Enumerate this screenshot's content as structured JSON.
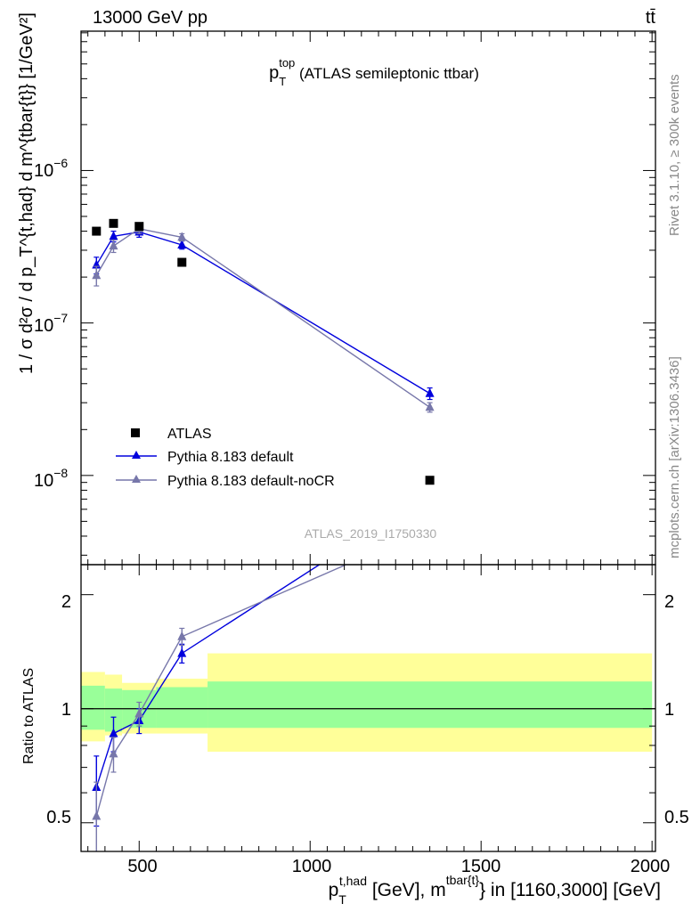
{
  "header": {
    "collision": "13000 GeV pp",
    "process": "tt̄"
  },
  "main_plot": {
    "title_main": "p",
    "title_sup": "top",
    "title_sub": "T",
    "title_desc": " (ATLAS semileptonic ttbar)",
    "ylabel": "1 / σ d²σ / d p_T^{t,had} d m^{tbar{t}} [1/GeV²]",
    "ytick_labels": [
      "10",
      "10",
      "10"
    ],
    "ytick_exponents": [
      "−6",
      "−7",
      "−8"
    ],
    "analysis_id": "ATLAS_2019_I1750330"
  },
  "side_text": {
    "rivet": "Rivet 3.1.10, ≥ 300k events",
    "mcplots": "mcplots.cern.ch [arXiv:1306.3436]"
  },
  "ratio_plot": {
    "ylabel": "Ratio to ATLAS",
    "ytick_labels": [
      "2",
      "1",
      "0.5"
    ]
  },
  "xaxis": {
    "tick_labels": [
      "500",
      "1000",
      "1500",
      "2000"
    ],
    "label_p": "p",
    "label_sup1": "t,had",
    "label_sub1": "T",
    "label_mid": " [GeV], m",
    "label_sup2": "tbar{t}",
    "label_end": "} in [1160,3000] [GeV]"
  },
  "legend": {
    "entries": [
      "ATLAS",
      "Pythia 8.183 default",
      "Pythia 8.183 default-noCR"
    ]
  },
  "colors": {
    "data": "#000000",
    "default": "#0000dd",
    "noCR": "#7777aa",
    "band_inner": "#99ff99",
    "band_outer": "#ffff99"
  },
  "chart_data": {
    "type": "line",
    "x_range": [
      330,
      2010
    ],
    "y_range": [
      2.6e-09,
      8.2e-06
    ],
    "y_scale": "log",
    "ratio_range": [
      0.42,
      2.4
    ],
    "ratio_scale": "log",
    "data": {
      "name": "ATLAS",
      "x": [
        375,
        425,
        500,
        625,
        1350
      ],
      "y": [
        4e-07,
        4.5e-07,
        4.3e-07,
        2.5e-07,
        9.3e-09
      ],
      "bin_edges": [
        330,
        400,
        450,
        550,
        700,
        2000
      ],
      "band_inner": [
        [
          0.88,
          1.15
        ],
        [
          0.87,
          1.13
        ],
        [
          0.89,
          1.12
        ],
        [
          0.89,
          1.14
        ],
        [
          0.89,
          1.18
        ]
      ],
      "band_outer": [
        [
          0.82,
          1.25
        ],
        [
          0.85,
          1.23
        ],
        [
          0.86,
          1.17
        ],
        [
          0.86,
          1.2
        ],
        [
          0.77,
          1.4
        ]
      ]
    },
    "series": [
      {
        "name": "Pythia 8.183 default",
        "x": [
          375,
          425,
          500,
          625,
          1350
        ],
        "y": [
          2.4e-07,
          3.7e-07,
          3.95e-07,
          3.25e-07,
          3.45e-08
        ],
        "yerr": [
          3e-08,
          3e-08,
          3e-08,
          2e-08,
          3e-09
        ],
        "ratio": [
          0.62,
          0.86,
          0.93,
          1.4,
          3.7
        ],
        "ratio_err": [
          0.13,
          0.09,
          0.07,
          0.08,
          0.3
        ]
      },
      {
        "name": "Pythia 8.183 default-noCR",
        "x": [
          375,
          425,
          500,
          625,
          1350
        ],
        "y": [
          2.05e-07,
          3.2e-07,
          4.15e-07,
          3.65e-07,
          2.8e-08
        ],
        "yerr": [
          3e-08,
          3e-08,
          3e-08,
          2e-08,
          2e-09
        ],
        "ratio": [
          0.52,
          0.76,
          0.97,
          1.55,
          3.0
        ],
        "ratio_err": [
          0.12,
          0.08,
          0.07,
          0.08,
          0.2
        ]
      }
    ]
  }
}
